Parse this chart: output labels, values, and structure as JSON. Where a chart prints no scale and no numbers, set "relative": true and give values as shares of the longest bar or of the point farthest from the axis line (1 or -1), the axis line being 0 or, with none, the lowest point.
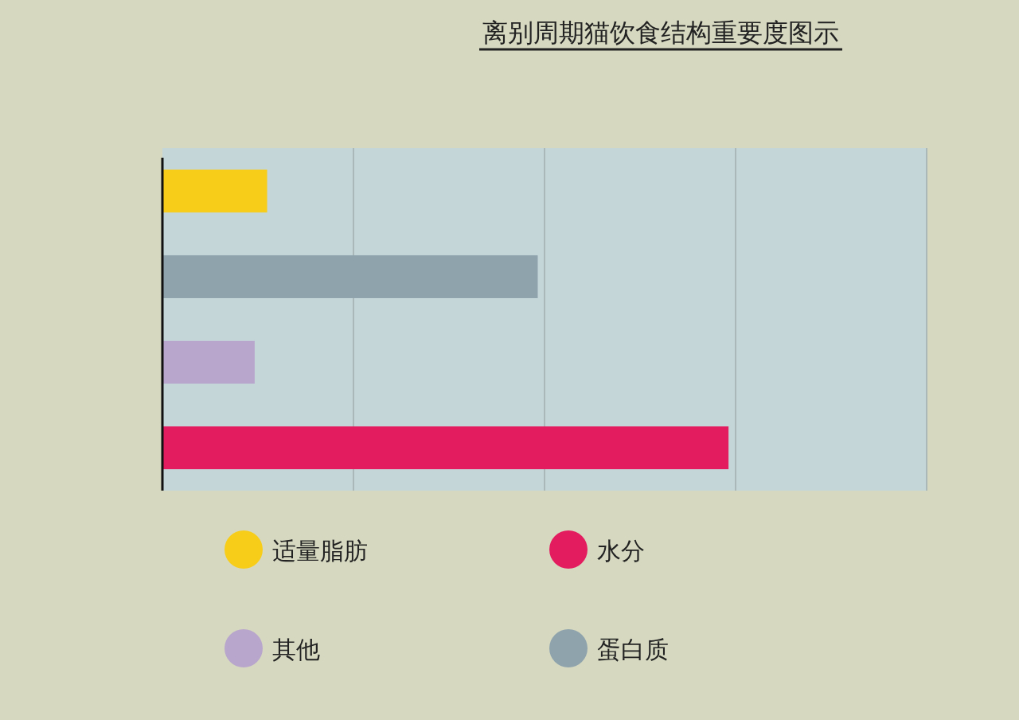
{
  "chart_data": {
    "type": "bar",
    "orientation": "horizontal",
    "relative": true,
    "title": "离别周期猫饮食结构重要度图示",
    "categories": [
      null,
      null,
      null,
      null
    ],
    "series": [
      {
        "name": "适量脂肪",
        "color": "#f7cd1a",
        "values": [
          0.185,
          null,
          null,
          null
        ]
      },
      {
        "name": "水分",
        "color": "#e31c5f",
        "values": [
          null,
          null,
          null,
          1
        ]
      },
      {
        "name": "其他",
        "color": "#b9a6cc",
        "values": [
          null,
          null,
          0.163,
          null
        ]
      },
      {
        "name": "蛋白质",
        "color": "#8fa3ad",
        "values": [
          null,
          0.663,
          null,
          null
        ]
      }
    ],
    "ref_lines": [
      {
        "axis": "x",
        "value": 0.3375,
        "color": "#aab8ba"
      },
      {
        "axis": "x",
        "value": 0.675,
        "color": "#aab8ba"
      },
      {
        "axis": "x",
        "value": 1.0125,
        "color": "#aab8ba"
      },
      {
        "axis": "x",
        "value": 1.35,
        "color": "#aab8ba"
      }
    ],
    "stacked": true,
    "legend": "bottom"
  }
}
